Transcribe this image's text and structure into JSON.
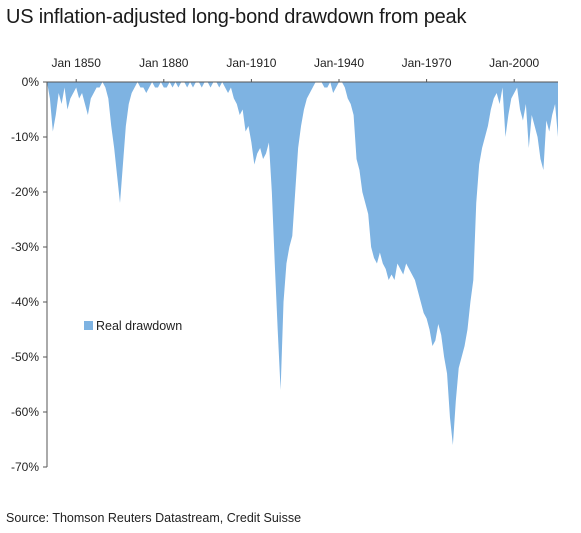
{
  "title": "US inflation-adjusted long-bond drawdown from peak",
  "source": "Source: Thomson Reuters Datastream, Credit Suisse",
  "colors": {
    "area": "#7eb3e2",
    "axis": "#555555"
  },
  "chart_data": {
    "type": "area",
    "title": "US inflation-adjusted long-bond drawdown from peak",
    "xlabel": "",
    "ylabel": "",
    "x_ticks": [
      "Jan 1850",
      "Jan 1880",
      "Jan-1910",
      "Jan-1940",
      "Jan-1970",
      "Jan-2000"
    ],
    "x_range": [
      1840,
      2015
    ],
    "y_ticks": [
      "0%",
      "-10%",
      "-20%",
      "-30%",
      "-40%",
      "-50%",
      "-60%",
      "-70%"
    ],
    "ylim": [
      -70,
      0
    ],
    "x_axis_position": "top",
    "legend": {
      "entries": [
        "Real drawdown"
      ],
      "placement": "left-middle"
    },
    "series": [
      {
        "name": "Real drawdown",
        "x": [
          1840,
          1841,
          1842,
          1843,
          1844,
          1845,
          1846,
          1847,
          1848,
          1849,
          1850,
          1851,
          1852,
          1853,
          1854,
          1855,
          1856,
          1857,
          1858,
          1859,
          1860,
          1861,
          1862,
          1863,
          1864,
          1865,
          1866,
          1867,
          1868,
          1869,
          1870,
          1871,
          1872,
          1873,
          1874,
          1875,
          1876,
          1877,
          1878,
          1879,
          1880,
          1881,
          1882,
          1883,
          1884,
          1885,
          1886,
          1887,
          1888,
          1889,
          1890,
          1891,
          1892,
          1893,
          1894,
          1895,
          1896,
          1897,
          1898,
          1899,
          1900,
          1901,
          1902,
          1903,
          1904,
          1905,
          1906,
          1907,
          1908,
          1909,
          1910,
          1911,
          1912,
          1913,
          1914,
          1915,
          1916,
          1917,
          1918,
          1919,
          1920,
          1921,
          1922,
          1923,
          1924,
          1925,
          1926,
          1927,
          1928,
          1929,
          1930,
          1931,
          1932,
          1933,
          1934,
          1935,
          1936,
          1937,
          1938,
          1939,
          1940,
          1941,
          1942,
          1943,
          1944,
          1945,
          1946,
          1947,
          1948,
          1949,
          1950,
          1951,
          1952,
          1953,
          1954,
          1955,
          1956,
          1957,
          1958,
          1959,
          1960,
          1961,
          1962,
          1963,
          1964,
          1965,
          1966,
          1967,
          1968,
          1969,
          1970,
          1971,
          1972,
          1973,
          1974,
          1975,
          1976,
          1977,
          1978,
          1979,
          1980,
          1981,
          1982,
          1983,
          1984,
          1985,
          1986,
          1987,
          1988,
          1989,
          1990,
          1991,
          1992,
          1993,
          1994,
          1995,
          1996,
          1997,
          1998,
          1999,
          2000,
          2001,
          2002,
          2003,
          2004,
          2005,
          2006,
          2007,
          2008,
          2009,
          2010,
          2011,
          2012,
          2013,
          2014,
          2015
        ],
        "values": [
          0,
          -3,
          -9,
          -6,
          -2,
          -4,
          -1,
          -5,
          -3,
          -2,
          -1,
          -3,
          -2,
          -4,
          -6,
          -3,
          -2,
          -1,
          -1,
          0,
          -1,
          -3,
          -8,
          -12,
          -17,
          -22,
          -15,
          -8,
          -4,
          -2,
          -1,
          0,
          -1,
          -1,
          -2,
          -1,
          0,
          -1,
          -1,
          0,
          -1,
          -1,
          0,
          -1,
          0,
          -1,
          0,
          0,
          -1,
          0,
          -1,
          0,
          0,
          -1,
          0,
          0,
          -1,
          0,
          0,
          -1,
          0,
          -1,
          -2,
          -1,
          -3,
          -4,
          -6,
          -5,
          -9,
          -8,
          -11,
          -15,
          -13,
          -12,
          -14,
          -13,
          -11,
          -20,
          -33,
          -45,
          -56,
          -40,
          -33,
          -30,
          -28,
          -20,
          -12,
          -8,
          -5,
          -3,
          -2,
          -1,
          0,
          0,
          0,
          -1,
          -1,
          0,
          -2,
          -1,
          0,
          0,
          -1,
          -3,
          -4,
          -6,
          -14,
          -16,
          -20,
          -22,
          -24,
          -30,
          -32,
          -33,
          -31,
          -33,
          -34,
          -36,
          -35,
          -36,
          -33,
          -34,
          -35,
          -33,
          -34,
          -35,
          -36,
          -38,
          -40,
          -42,
          -43,
          -45,
          -48,
          -47,
          -44,
          -46,
          -50,
          -53,
          -61,
          -66,
          -58,
          -52,
          -50,
          -48,
          -45,
          -40,
          -36,
          -22,
          -15,
          -12,
          -10,
          -8,
          -5,
          -3,
          -2,
          -4,
          -1,
          -10,
          -6,
          -3,
          -2,
          -1,
          -5,
          -7,
          -4,
          -12,
          -6,
          -8,
          -10,
          -14,
          -16,
          -7,
          -9,
          -6,
          -4,
          -10
        ]
      }
    ]
  }
}
